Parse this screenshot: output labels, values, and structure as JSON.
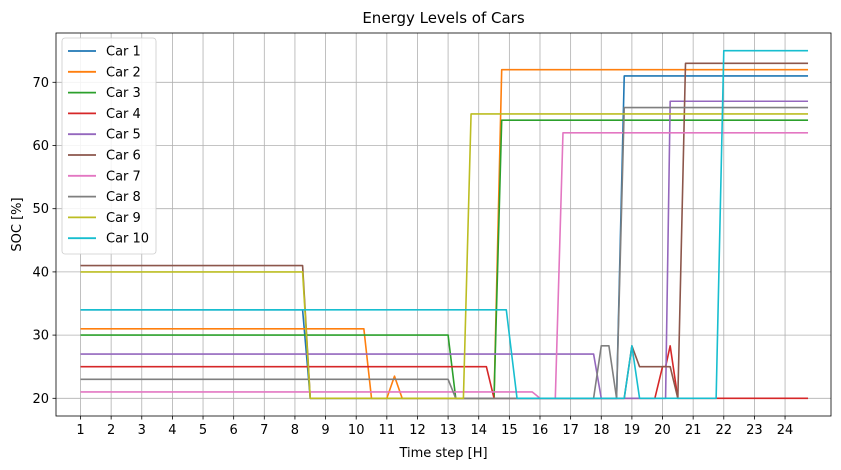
{
  "chart_data": {
    "type": "line",
    "title": "Energy Levels of Cars",
    "xlabel": "Time step [H]",
    "ylabel": "SOC [%]",
    "xlim": [
      0.2,
      25.5
    ],
    "ylim": [
      17.2,
      77.8
    ],
    "xticks": [
      1,
      2,
      3,
      4,
      5,
      6,
      7,
      8,
      9,
      10,
      11,
      12,
      13,
      14,
      15,
      16,
      17,
      18,
      19,
      20,
      21,
      22,
      23,
      24
    ],
    "yticks": [
      20,
      30,
      40,
      50,
      60,
      70
    ],
    "grid": true,
    "legend_position": "top-left",
    "series": [
      {
        "name": "Car 1",
        "color": "#1f77b4",
        "points": [
          [
            1,
            34
          ],
          [
            8.25,
            34
          ],
          [
            8.5,
            20
          ],
          [
            18.5,
            20
          ],
          [
            18.75,
            71
          ],
          [
            24.75,
            71
          ]
        ]
      },
      {
        "name": "Car 2",
        "color": "#ff7f0e",
        "points": [
          [
            1,
            31
          ],
          [
            10.25,
            31
          ],
          [
            10.5,
            20
          ],
          [
            11,
            20
          ],
          [
            11.25,
            23.5
          ],
          [
            11.5,
            20
          ],
          [
            14.5,
            20
          ],
          [
            14.75,
            72
          ],
          [
            24.75,
            72
          ]
        ]
      },
      {
        "name": "Car 3",
        "color": "#2ca02c",
        "points": [
          [
            1,
            30
          ],
          [
            13,
            30
          ],
          [
            13.25,
            20
          ],
          [
            14.5,
            20
          ],
          [
            14.75,
            64
          ],
          [
            24.75,
            64
          ]
        ]
      },
      {
        "name": "Car 4",
        "color": "#d62728",
        "points": [
          [
            1,
            25
          ],
          [
            14.25,
            25
          ],
          [
            14.5,
            20
          ],
          [
            19.75,
            20
          ],
          [
            20,
            25
          ],
          [
            20.1,
            25
          ],
          [
            20.25,
            28.3
          ],
          [
            20.5,
            20
          ],
          [
            24.75,
            20
          ]
        ]
      },
      {
        "name": "Car 5",
        "color": "#9467bd",
        "points": [
          [
            1,
            27
          ],
          [
            17.75,
            27
          ],
          [
            18,
            20
          ],
          [
            20.1,
            20
          ],
          [
            20.25,
            67
          ],
          [
            24.75,
            67
          ]
        ]
      },
      {
        "name": "Car 6",
        "color": "#8c564b",
        "points": [
          [
            1,
            41
          ],
          [
            8.25,
            41
          ],
          [
            8.5,
            20
          ],
          [
            18.75,
            20
          ],
          [
            19,
            28.3
          ],
          [
            19.25,
            25
          ],
          [
            20.25,
            25
          ],
          [
            20.5,
            20
          ],
          [
            20.75,
            73
          ],
          [
            24.75,
            73
          ]
        ]
      },
      {
        "name": "Car 7",
        "color": "#e377c2",
        "points": [
          [
            1,
            21
          ],
          [
            15.75,
            21
          ],
          [
            16,
            20
          ],
          [
            16.5,
            20
          ],
          [
            16.75,
            62
          ],
          [
            24.75,
            62
          ]
        ]
      },
      {
        "name": "Car 8",
        "color": "#7f7f7f",
        "points": [
          [
            1,
            23
          ],
          [
            13,
            23
          ],
          [
            13.25,
            20
          ],
          [
            17.75,
            20
          ],
          [
            18,
            28.3
          ],
          [
            18.25,
            28.3
          ],
          [
            18.5,
            20
          ],
          [
            18.75,
            66
          ],
          [
            24.75,
            66
          ]
        ]
      },
      {
        "name": "Car 9",
        "color": "#bcbd22",
        "points": [
          [
            1,
            40
          ],
          [
            8.25,
            40
          ],
          [
            8.5,
            20
          ],
          [
            13.5,
            20
          ],
          [
            13.75,
            65
          ],
          [
            24.75,
            65
          ]
        ]
      },
      {
        "name": "Car 10",
        "color": "#17becf",
        "points": [
          [
            1,
            34
          ],
          [
            14.9,
            34
          ],
          [
            15.25,
            20
          ],
          [
            18.75,
            20
          ],
          [
            19,
            28.3
          ],
          [
            19.25,
            20
          ],
          [
            21.75,
            20
          ],
          [
            22,
            75
          ],
          [
            24.75,
            75
          ]
        ]
      }
    ]
  }
}
